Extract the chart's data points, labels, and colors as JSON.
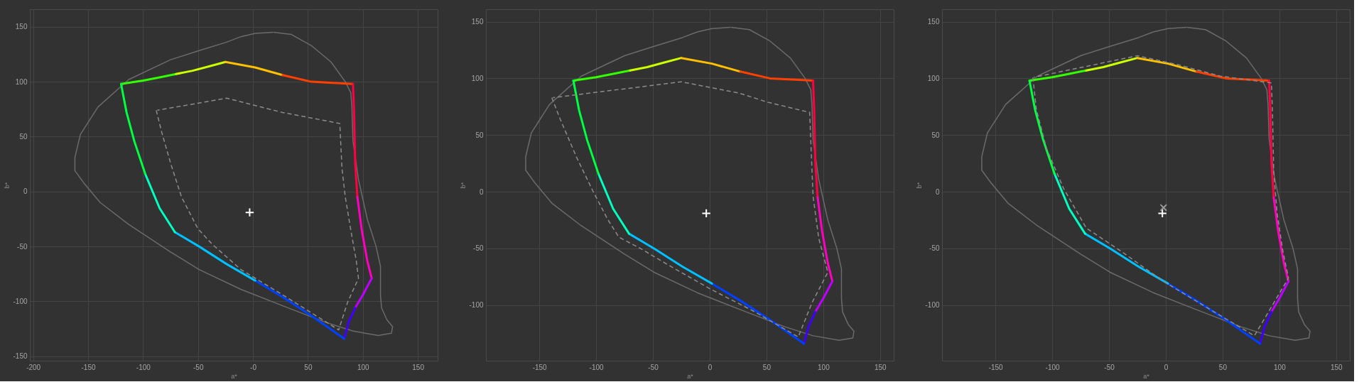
{
  "chart_data": [
    {
      "type": "line",
      "xlabel": "a*",
      "ylabel": "b*",
      "xlim": [
        -203,
        168
      ],
      "ylim": [
        -154,
        166
      ],
      "xticks": [
        -200,
        -150,
        -100,
        -50,
        {
          "value": 0,
          "label": "-0"
        },
        50,
        100,
        150
      ],
      "yticks": [
        150,
        100,
        50,
        0,
        -50,
        -100,
        -150
      ],
      "grid": true,
      "series": [
        {
          "color": "#6b6b6b",
          "x": [
            18,
            2,
            -11,
            -24,
            -50,
            -75,
            -113,
            -141,
            -157,
            -162,
            -162,
            -154,
            -139,
            -113,
            -75,
            -49,
            -11,
            27,
            66,
            91,
            114,
            126,
            127,
            122,
            117,
            116,
            116,
            112,
            104,
            96,
            91,
            90,
            89,
            84,
            71,
            53,
            35,
            19
          ],
          "values": [
            145,
            144,
            141,
            136,
            128,
            120,
            102,
            77,
            52,
            31,
            19,
            8,
            -10,
            -30,
            -55,
            -71,
            -89,
            -104,
            -119,
            -127,
            -131,
            -129,
            -123,
            -117,
            -106,
            -94,
            -68,
            -50,
            -25,
            11,
            46,
            77,
            90,
            100,
            118,
            133,
            143,
            145
          ]
        },
        {
          "color": "#33ff00",
          "x": [
            -120,
            -100,
            -85,
            -70
          ],
          "values": [
            98,
            101,
            104,
            107
          ]
        },
        {
          "color": "#ccff00",
          "x": [
            -70,
            -55,
            -40,
            -25
          ],
          "values": [
            107,
            110,
            114,
            118
          ]
        },
        {
          "color": "#ffc000",
          "x": [
            -25,
            2,
            27
          ],
          "values": [
            118,
            113,
            106
          ]
        },
        {
          "color": "#ff4000",
          "x": [
            27,
            53,
            73,
            91
          ],
          "values": [
            106,
            100,
            99,
            98
          ]
        },
        {
          "color": "#ff0040",
          "x": [
            91,
            92,
            93,
            95
          ],
          "values": [
            98,
            72,
            26,
            -5
          ]
        },
        {
          "color": "#ff00c0",
          "x": [
            95,
            99,
            104,
            108
          ],
          "values": [
            -5,
            -35,
            -63,
            -79
          ]
        },
        {
          "color": "#c000ff",
          "x": [
            108,
            100,
            93
          ],
          "values": [
            -79,
            -94,
            -106
          ]
        },
        {
          "color": "#4000ff",
          "x": [
            93,
            87,
            83
          ],
          "values": [
            -106,
            -119,
            -134
          ]
        },
        {
          "color": "#0040ff",
          "x": [
            83,
            53,
            27,
            2
          ],
          "values": [
            -134,
            -113,
            -96,
            -81
          ]
        },
        {
          "color": "#00c0ff",
          "x": [
            2,
            -24,
            -49,
            -71
          ],
          "values": [
            -81,
            -66,
            -50,
            -37
          ]
        },
        {
          "color": "#00ffc0",
          "x": [
            -71,
            -85,
            -98
          ],
          "values": [
            -37,
            -15,
            16
          ]
        },
        {
          "color": "#00ff40",
          "x": [
            -98,
            -108,
            -115,
            -120
          ],
          "values": [
            16,
            46,
            72,
            98
          ]
        },
        {
          "color": "#8c8c8c",
          "line_style": "dashed",
          "x": [
            -88,
            -83,
            -75,
            -65,
            -50,
            -37,
            -11,
            27,
            78,
            86,
            96,
            94,
            89,
            84,
            81,
            79,
            53,
            27,
            -24,
            -87
          ],
          "values": [
            74,
            54,
            26,
            -5,
            -34,
            -48,
            -71,
            -94,
            -126,
            -101,
            -79,
            -63,
            -35,
            -5,
            21,
            62,
            67,
            72,
            85,
            74
          ]
        },
        {
          "type": "scatter",
          "marker": "cross",
          "color": "#ffffff",
          "x": [
            -3
          ],
          "values": [
            -19
          ]
        }
      ]
    },
    {
      "type": "line",
      "xlabel": "a*",
      "ylabel": "b*",
      "xlim": [
        -197,
        162
      ],
      "ylim": [
        -149,
        161
      ],
      "xticks": [
        -150,
        -100,
        -50,
        0,
        50,
        100,
        150
      ],
      "yticks": [
        150,
        100,
        50,
        0,
        -50,
        -100
      ],
      "grid": true,
      "series": [
        {
          "color": "#6b6b6b",
          "x": [
            18,
            2,
            -11,
            -24,
            -50,
            -75,
            -113,
            -141,
            -157,
            -162,
            -162,
            -154,
            -139,
            -113,
            -75,
            -49,
            -11,
            27,
            66,
            91,
            114,
            126,
            127,
            122,
            117,
            116,
            116,
            112,
            104,
            96,
            91,
            90,
            89,
            84,
            71,
            53,
            35,
            19
          ],
          "values": [
            145,
            144,
            141,
            136,
            128,
            120,
            102,
            77,
            52,
            31,
            19,
            8,
            -10,
            -30,
            -55,
            -71,
            -89,
            -104,
            -119,
            -127,
            -131,
            -129,
            -123,
            -117,
            -106,
            -94,
            -68,
            -50,
            -25,
            11,
            46,
            77,
            90,
            100,
            118,
            133,
            143,
            145
          ]
        },
        {
          "color": "#33ff00",
          "x": [
            -120,
            -100,
            -85,
            -70
          ],
          "values": [
            98,
            101,
            104,
            107
          ]
        },
        {
          "color": "#ccff00",
          "x": [
            -70,
            -55,
            -40,
            -25
          ],
          "values": [
            107,
            110,
            114,
            118
          ]
        },
        {
          "color": "#ffc000",
          "x": [
            -25,
            2,
            27
          ],
          "values": [
            118,
            113,
            106
          ]
        },
        {
          "color": "#ff4000",
          "x": [
            27,
            53,
            73,
            91
          ],
          "values": [
            106,
            100,
            99,
            98
          ]
        },
        {
          "color": "#ff0040",
          "x": [
            91,
            92,
            93,
            95
          ],
          "values": [
            98,
            72,
            26,
            -5
          ]
        },
        {
          "color": "#ff00c0",
          "x": [
            95,
            99,
            104,
            108
          ],
          "values": [
            -5,
            -35,
            -63,
            -79
          ]
        },
        {
          "color": "#c000ff",
          "x": [
            108,
            100,
            93
          ],
          "values": [
            -79,
            -94,
            -106
          ]
        },
        {
          "color": "#4000ff",
          "x": [
            93,
            87,
            83
          ],
          "values": [
            -106,
            -119,
            -134
          ]
        },
        {
          "color": "#0040ff",
          "x": [
            83,
            53,
            27,
            2
          ],
          "values": [
            -134,
            -113,
            -96,
            -81
          ]
        },
        {
          "color": "#00c0ff",
          "x": [
            2,
            -24,
            -49,
            -71
          ],
          "values": [
            -81,
            -66,
            -50,
            -37
          ]
        },
        {
          "color": "#00ffc0",
          "x": [
            -71,
            -85,
            -98
          ],
          "values": [
            -37,
            -15,
            16
          ]
        },
        {
          "color": "#00ff40",
          "x": [
            -98,
            -108,
            -115,
            -120
          ],
          "values": [
            16,
            46,
            72,
            98
          ]
        },
        {
          "color": "#8c8c8c",
          "line_style": "dashed",
          "x": [
            -139,
            -132,
            -117,
            -103,
            -90,
            -80,
            -61,
            -34,
            1,
            38,
            78,
            90,
            104,
            96,
            91,
            89,
            88,
            51,
            26,
            -25,
            -138
          ],
          "values": [
            83,
            65,
            30,
            1,
            -24,
            -40,
            -50,
            -66,
            -86,
            -105,
            -128,
            -98,
            -71,
            -41,
            -4,
            45,
            70,
            79,
            87,
            97,
            83
          ]
        },
        {
          "type": "scatter",
          "marker": "cross",
          "color": "#ffffff",
          "x": [
            -3
          ],
          "values": [
            -19
          ]
        }
      ]
    },
    {
      "type": "line",
      "xlabel": "a*",
      "ylabel": "b*",
      "xlim": [
        -197,
        162
      ],
      "ylim": [
        -149,
        161
      ],
      "xticks": [
        -150,
        -100,
        -50,
        0,
        50,
        100,
        150
      ],
      "yticks": [
        150,
        100,
        50,
        0,
        -50,
        -100
      ],
      "grid": true,
      "series": [
        {
          "color": "#6b6b6b",
          "x": [
            18,
            2,
            -11,
            -24,
            -50,
            -75,
            -113,
            -141,
            -157,
            -162,
            -162,
            -154,
            -139,
            -113,
            -75,
            -49,
            -11,
            27,
            66,
            91,
            114,
            126,
            127,
            122,
            117,
            116,
            116,
            112,
            104,
            96,
            91,
            90,
            89,
            84,
            71,
            53,
            35,
            19
          ],
          "values": [
            145,
            144,
            141,
            136,
            128,
            120,
            102,
            77,
            52,
            31,
            19,
            8,
            -10,
            -30,
            -55,
            -71,
            -89,
            -104,
            -119,
            -127,
            -131,
            -129,
            -123,
            -117,
            -106,
            -94,
            -68,
            -50,
            -25,
            11,
            46,
            77,
            90,
            100,
            118,
            133,
            143,
            145
          ]
        },
        {
          "color": "#33ff00",
          "x": [
            -120,
            -100,
            -85,
            -70
          ],
          "values": [
            98,
            101,
            104,
            107
          ]
        },
        {
          "color": "#ccff00",
          "x": [
            -70,
            -55,
            -40,
            -25
          ],
          "values": [
            107,
            110,
            114,
            118
          ]
        },
        {
          "color": "#ffc000",
          "x": [
            -25,
            2,
            27
          ],
          "values": [
            118,
            113,
            106
          ]
        },
        {
          "color": "#ff4000",
          "x": [
            27,
            53,
            73,
            91
          ],
          "values": [
            106,
            100,
            99,
            98
          ]
        },
        {
          "color": "#ff0040",
          "x": [
            91,
            92,
            93,
            95
          ],
          "values": [
            98,
            72,
            26,
            -5
          ]
        },
        {
          "color": "#ff00c0",
          "x": [
            95,
            99,
            104,
            108
          ],
          "values": [
            -5,
            -35,
            -63,
            -79
          ]
        },
        {
          "color": "#c000ff",
          "x": [
            108,
            100,
            93
          ],
          "values": [
            -79,
            -94,
            -106
          ]
        },
        {
          "color": "#4000ff",
          "x": [
            93,
            87,
            83
          ],
          "values": [
            -106,
            -119,
            -134
          ]
        },
        {
          "color": "#0040ff",
          "x": [
            83,
            53,
            27,
            2
          ],
          "values": [
            -134,
            -113,
            -96,
            -81
          ]
        },
        {
          "color": "#00c0ff",
          "x": [
            2,
            -24,
            -49,
            -71
          ],
          "values": [
            -81,
            -66,
            -50,
            -37
          ]
        },
        {
          "color": "#00ffc0",
          "x": [
            -71,
            -85,
            -98
          ],
          "values": [
            -37,
            -15,
            16
          ]
        },
        {
          "color": "#00ff40",
          "x": [
            -98,
            -108,
            -115,
            -120
          ],
          "values": [
            16,
            46,
            72,
            98
          ]
        },
        {
          "color": "#8c8c8c",
          "line_style": "dashed",
          "x": [
            -117,
            -114,
            -105,
            -90,
            -70,
            -40,
            -2,
            36,
            78,
            108,
            103,
            98,
            95,
            94,
            93,
            48,
            11,
            -25,
            -116
          ],
          "values": [
            101,
            73,
            38,
            3,
            -32,
            -52,
            -79,
            -102,
            -127,
            -76,
            -52,
            -19,
            18,
            68,
            96,
            102,
            112,
            120,
            101
          ]
        },
        {
          "type": "scatter",
          "marker": "cross",
          "color": "#ffffff",
          "x": [
            -3
          ],
          "values": [
            -19
          ]
        },
        {
          "type": "scatter",
          "marker": "x",
          "color": "#9a9a9a",
          "x": [
            -2
          ],
          "values": [
            -14
          ]
        }
      ]
    }
  ]
}
